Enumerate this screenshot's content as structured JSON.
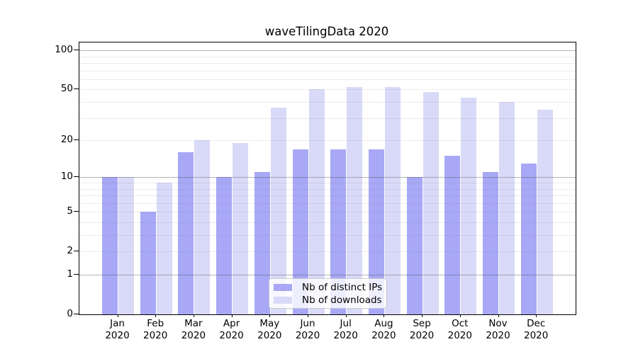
{
  "title": "waveTilingData 2020",
  "colors": {
    "series_distinct_ips": "#a8a8f7",
    "series_downloads": "#d9d9f8",
    "axis": "#000000",
    "grid_major": "#b4b4b4",
    "grid_minor": "#e9e9e9",
    "legend_border": "#cccccc"
  },
  "legend": {
    "items": [
      {
        "label": "Nb of distinct IPs"
      },
      {
        "label": "Nb of downloads"
      }
    ]
  },
  "chart_data": {
    "type": "bar",
    "title": "waveTilingData 2020",
    "categories": [
      "Jan 2020",
      "Feb 2020",
      "Mar 2020",
      "Apr 2020",
      "May 2020",
      "Jun 2020",
      "Jul 2020",
      "Aug 2020",
      "Sep 2020",
      "Oct 2020",
      "Nov 2020",
      "Dec 2020"
    ],
    "series": [
      {
        "name": "Nb of distinct IPs",
        "color": "#a8a8f7",
        "values": [
          10,
          5,
          16,
          10,
          11,
          17,
          17,
          17,
          10,
          15,
          11,
          13
        ]
      },
      {
        "name": "Nb of downloads",
        "color": "#d9d9f8",
        "values": [
          10,
          9,
          20,
          19,
          36,
          50,
          52,
          52,
          48,
          43,
          40,
          35
        ]
      }
    ],
    "xlabel": "",
    "ylabel": "",
    "yscale": "log1p",
    "ylim": [
      0,
      115
    ],
    "y_tick_values": [
      0,
      1,
      2,
      5,
      10,
      20,
      50,
      100
    ],
    "y_tick_labels": [
      "0",
      "1",
      "2",
      "5",
      "10",
      "20",
      "50",
      "100"
    ],
    "y_major_gridlines": [
      1,
      10,
      100
    ],
    "y_minor_gridlines": [
      2,
      3,
      4,
      5,
      6,
      7,
      8,
      9,
      20,
      30,
      40,
      50,
      60,
      70,
      80,
      90
    ],
    "grid": true,
    "legend_position": "lower center"
  }
}
